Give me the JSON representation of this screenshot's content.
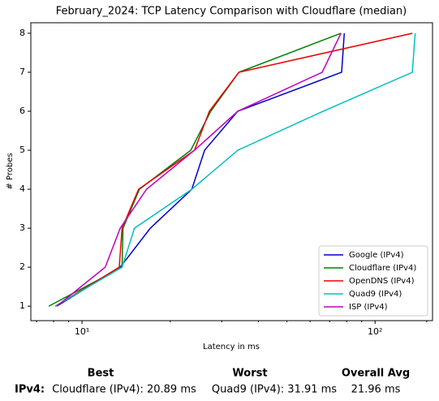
{
  "chart_data": {
    "type": "line",
    "title": "February_2024: TCP Latency Comparison with Cloudflare (median)",
    "xlabel": "Latency in ms",
    "ylabel": "# Probes",
    "xscale": "log",
    "xlim": [
      6.69,
      157
    ],
    "ylim": [
      0.63,
      8.27
    ],
    "xticks": [
      {
        "value": 10,
        "label": "10¹"
      },
      {
        "value": 100,
        "label": "10²"
      }
    ],
    "xminorticks": [
      7,
      8,
      9,
      20,
      30,
      40,
      50,
      60,
      70,
      80,
      90,
      150
    ],
    "yticks": [
      1,
      2,
      3,
      4,
      5,
      6,
      7,
      8
    ],
    "legend": "lower right",
    "series": [
      {
        "name": "Google (IPv4)",
        "color": "#0000cc",
        "x": [
          8.2,
          13.5,
          17.1,
          23.7,
          26.2,
          34.0,
          76.9,
          78.5
        ],
        "values": [
          1,
          2,
          3,
          4,
          5,
          6,
          7,
          8
        ]
      },
      {
        "name": "Cloudflare (IPv4)",
        "color": "#008000",
        "x": [
          7.7,
          13.7,
          13.8,
          15.7,
          23.5,
          27.5,
          34.3,
          76.5
        ],
        "values": [
          1,
          2,
          3,
          4,
          5,
          6,
          7,
          8
        ]
      },
      {
        "name": "OpenDNS (IPv4)",
        "color": "#ee0000",
        "x": [
          8.1,
          13.4,
          13.7,
          15.6,
          24.2,
          27.2,
          34.3,
          134
        ],
        "values": [
          1,
          2,
          3,
          4,
          5,
          6,
          7,
          8
        ]
      },
      {
        "name": "Quad9 (IPv4)",
        "color": "#00bfbf",
        "x": [
          8.1,
          13.7,
          15.1,
          23.7,
          34.0,
          66.5,
          134,
          137
        ],
        "values": [
          1,
          2,
          3,
          4,
          5,
          6,
          7,
          8
        ]
      },
      {
        "name": "ISP (IPv4)",
        "color": "#bf00bf",
        "x": [
          8.2,
          12.0,
          13.5,
          16.6,
          24.2,
          34.0,
          66.0,
          76.5
        ],
        "values": [
          1,
          2,
          3,
          4,
          5,
          6,
          7,
          8
        ]
      }
    ]
  },
  "summary": {
    "headers": [
      "Best",
      "Worst",
      "Overall Avg"
    ],
    "row": {
      "label": "IPv4:",
      "cells": [
        "Cloudflare (IPv4): 20.89 ms",
        "Quad9 (IPv4): 31.91 ms",
        "21.96 ms"
      ]
    }
  }
}
